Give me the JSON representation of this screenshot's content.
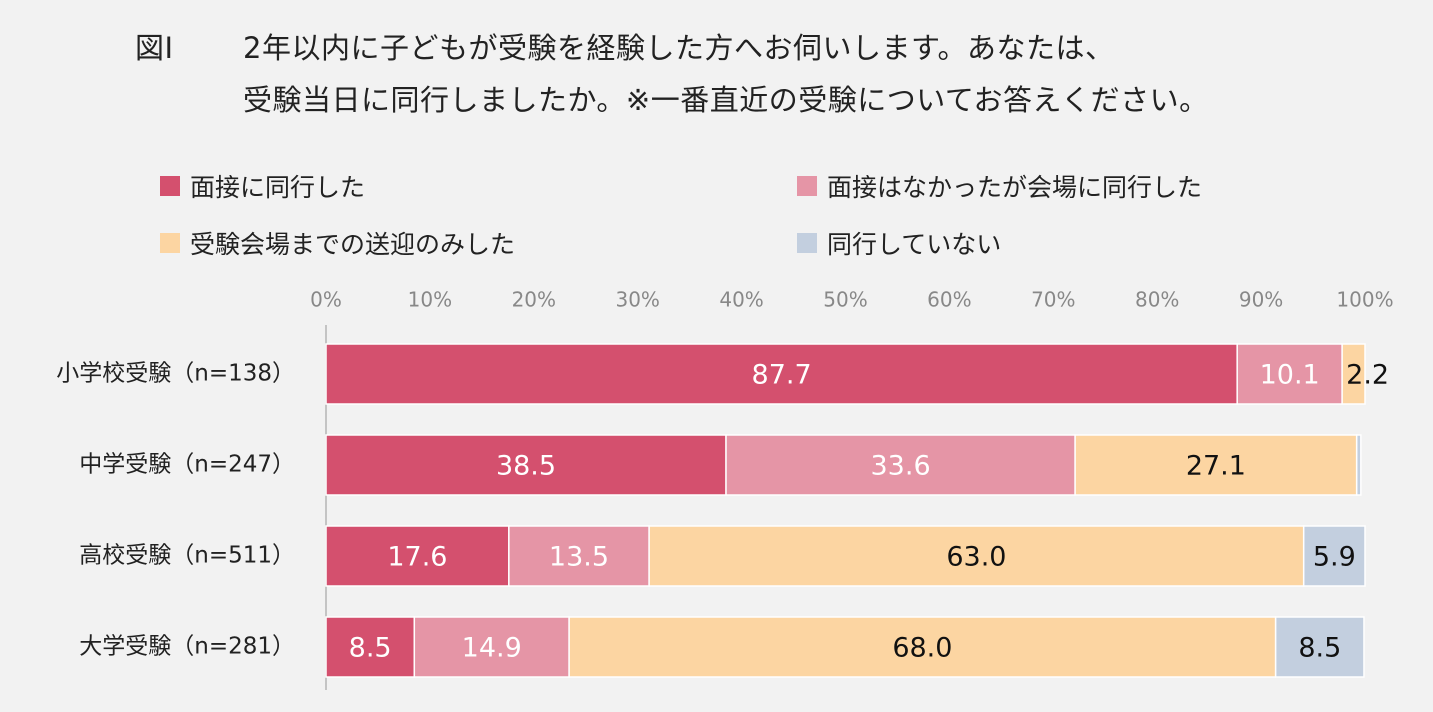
{
  "title": {
    "figure_label": "図Ⅰ",
    "line1": "2年以内に子どもが受験を経験した方へお伺いします。あなたは、",
    "line2": "受験当日に同行しましたか。※一番直近の受験についてお答えください。"
  },
  "chart_data": {
    "type": "bar",
    "orientation": "horizontal",
    "stacked": true,
    "categories": [
      "小学校受験（n=138）",
      "中学受験（n=247）",
      "高校受験（n=511）",
      "大学受験（n=281）"
    ],
    "series": [
      {
        "name": "面接に同行した",
        "color": "#d4506e",
        "label_color": "#ffffff",
        "values": [
          87.7,
          38.5,
          17.6,
          8.5
        ],
        "labels": [
          "87.7",
          "38.5",
          "17.6",
          "8.5"
        ]
      },
      {
        "name": "面接はなかったが会場に同行した",
        "color": "#e595a6",
        "label_color": "#ffffff",
        "values": [
          10.1,
          33.6,
          13.5,
          14.9
        ],
        "labels": [
          "10.1",
          "33.6",
          "13.5",
          "14.9"
        ]
      },
      {
        "name": "受験会場までの送迎のみした",
        "color": "#fcd5a2",
        "label_color": "#111111",
        "values": [
          2.2,
          27.1,
          63.0,
          68.0
        ],
        "labels": [
          "2.2",
          "27.1",
          "63.0",
          "68.0"
        ]
      },
      {
        "name": "同行していない",
        "color": "#c3cfdf",
        "label_color": "#111111",
        "values": [
          0.0,
          0.4,
          5.9,
          8.5
        ],
        "labels": [
          "",
          "",
          "5.9",
          "8.5"
        ]
      }
    ],
    "xlim": [
      0,
      100
    ],
    "xticks": [
      "0%",
      "10%",
      "20%",
      "30%",
      "40%",
      "50%",
      "60%",
      "70%",
      "80%",
      "90%",
      "100%"
    ],
    "axis_position": "top",
    "legend_position": "top",
    "xlabel": "",
    "ylabel": ""
  }
}
